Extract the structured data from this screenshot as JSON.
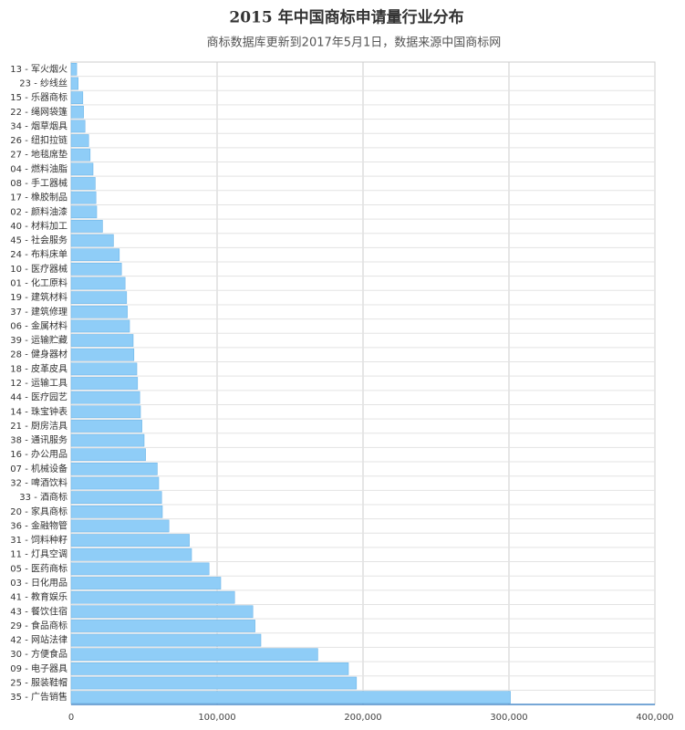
{
  "chart_data": {
    "type": "hbar",
    "title": "2015 年中国商标申请量行业分布",
    "subtitle": "商标数据库更新到2017年5月1日，数据来源中国商标网",
    "categories": [
      "13 - 军火烟火",
      "23 - 纱线丝",
      "15 - 乐器商标",
      "22 - 绳网袋篷",
      "34 - 烟草烟具",
      "26 - 纽扣拉链",
      "27 - 地毯席垫",
      "04 - 燃料油脂",
      "08 - 手工器械",
      "17 - 橡胶制品",
      "02 - 颜料油漆",
      "40 - 材料加工",
      "45 - 社会服务",
      "24 - 布料床单",
      "10 - 医疗器械",
      "01 - 化工原料",
      "19 - 建筑材料",
      "37 - 建筑修理",
      "06 - 金属材料",
      "39 - 运输贮藏",
      "28 - 健身器材",
      "18 - 皮革皮具",
      "12 - 运输工具",
      "44 - 医疗园艺",
      "14 - 珠宝钟表",
      "21 - 厨房洁具",
      "38 - 通讯服务",
      "16 - 办公用品",
      "07 - 机械设备",
      "32 - 啤酒饮料",
      "33 - 酒商标",
      "20 - 家具商标",
      "36 - 金融物管",
      "31 - 饲料种籽",
      "11 - 灯具空调",
      "05 - 医药商标",
      "03 - 日化用品",
      "41 - 教育娱乐",
      "43 - 餐饮住宿",
      "29 - 食品商标",
      "42 - 网站法律",
      "30 - 方便食品",
      "09 - 电子器具",
      "25 - 服装鞋帽",
      "35 - 广告销售"
    ],
    "values": [
      3800,
      4800,
      8000,
      8500,
      9500,
      12000,
      13000,
      15000,
      16500,
      17000,
      17500,
      21500,
      29000,
      33000,
      34500,
      37000,
      38000,
      38500,
      40000,
      42500,
      43000,
      45000,
      45500,
      47000,
      47500,
      48500,
      50000,
      51000,
      59000,
      60000,
      62000,
      62500,
      67000,
      81000,
      82500,
      94500,
      102500,
      112000,
      124500,
      126000,
      130000,
      169000,
      190000,
      195500,
      301000
    ],
    "color": "#8fcdf7",
    "xlim": [
      0,
      400000
    ],
    "xticks": [
      0,
      {
        "value": 100000,
        "label": "100,000"
      },
      {
        "value": 200000,
        "label": "200,000"
      },
      {
        "value": 300000,
        "label": "300,000"
      },
      {
        "value": 400000,
        "label": "400,000"
      }
    ],
    "grid": true
  }
}
